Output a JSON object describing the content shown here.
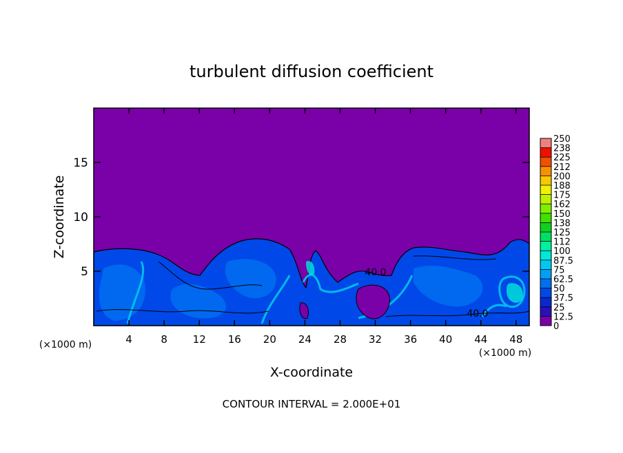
{
  "chart_data": {
    "type": "contour",
    "title": "turbulent diffusion coefficient",
    "x_label": "X-coordinate",
    "y_label": "Z-coordinate",
    "x_unit": "(×1000 m)",
    "x_unit_right": "(×1000 m)",
    "footer": "CONTOUR INTERVAL = 2.000E+01",
    "contour_labels": [
      "40.0",
      "40.0"
    ],
    "xlim": [
      0,
      49.5
    ],
    "xticks": [
      4,
      8,
      12,
      16,
      20,
      24,
      28,
      32,
      36,
      40,
      44,
      48
    ],
    "ylim": [
      0,
      20
    ],
    "yticks": [
      5,
      10,
      15
    ],
    "colorbar": {
      "ticks": [
        0,
        12.5,
        25,
        37.5,
        50,
        62.5,
        75,
        87.5,
        100,
        112,
        125,
        138,
        150,
        162,
        175,
        188,
        200,
        212,
        225,
        238,
        250
      ],
      "colors": [
        "#7a00a8",
        "#2a10b8",
        "#0a28d0",
        "#0048e8",
        "#0070f0",
        "#00a0f8",
        "#00c8f0",
        "#00e8d8",
        "#00f0a0",
        "#00e060",
        "#10d020",
        "#40e000",
        "#80f000",
        "#c0f000",
        "#f0f000",
        "#f8c800",
        "#f89000",
        "#f05000",
        "#f01000",
        "#f08080"
      ]
    }
  }
}
